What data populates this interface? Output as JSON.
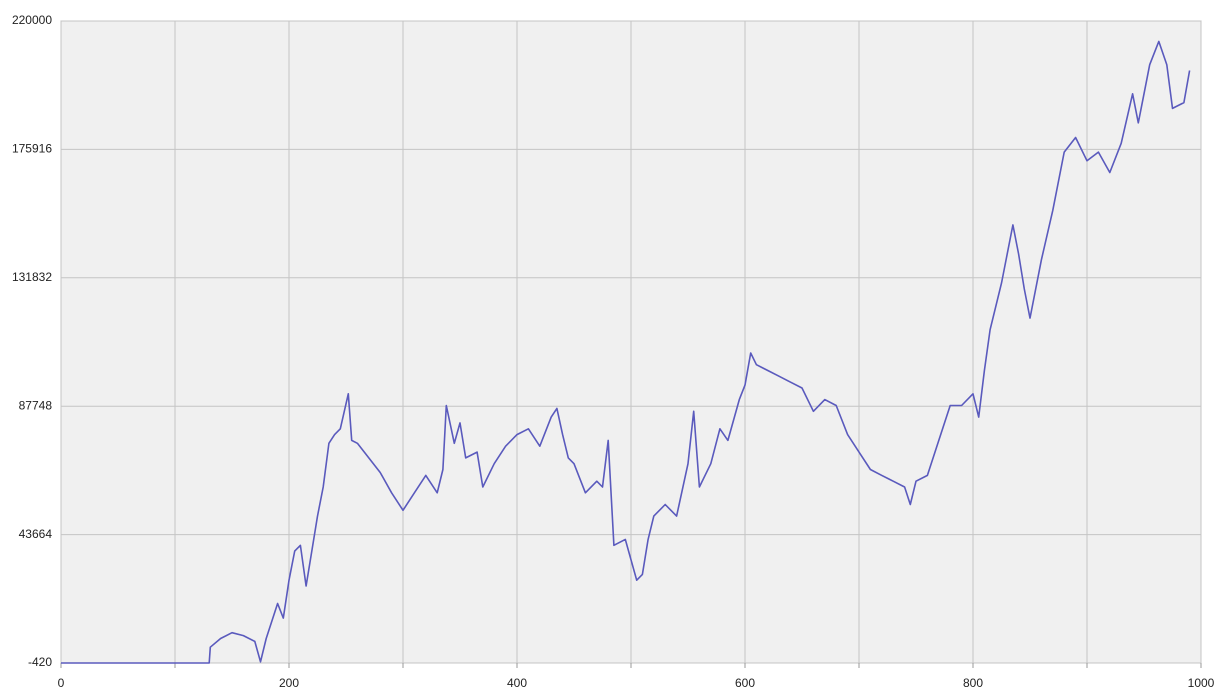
{
  "chart_data": {
    "type": "line",
    "color": "#5a5abd",
    "grid": true,
    "x": [
      0,
      120,
      130,
      131,
      140,
      150,
      160,
      170,
      175,
      180,
      190,
      195,
      200,
      205,
      210,
      215,
      220,
      225,
      230,
      235,
      240,
      245,
      252,
      255,
      260,
      270,
      280,
      290,
      300,
      310,
      320,
      330,
      335,
      338,
      345,
      350,
      355,
      365,
      370,
      380,
      390,
      400,
      410,
      420,
      430,
      435,
      440,
      445,
      450,
      460,
      470,
      475,
      480,
      485,
      495,
      505,
      510,
      515,
      520,
      530,
      540,
      550,
      555,
      560,
      570,
      578,
      585,
      595,
      600,
      605,
      610,
      620,
      630,
      640,
      650,
      660,
      670,
      680,
      690,
      700,
      710,
      720,
      730,
      740,
      745,
      750,
      760,
      770,
      780,
      790,
      800,
      805,
      810,
      815,
      825,
      835,
      840,
      845,
      850,
      860,
      870,
      880,
      890,
      900,
      910,
      920,
      930,
      940,
      945,
      955,
      963,
      970,
      975,
      985,
      990
    ],
    "values": [
      -420,
      -420,
      -420,
      5000,
      8000,
      10000,
      9000,
      7000,
      0,
      8000,
      20000,
      15000,
      28000,
      38000,
      40000,
      26000,
      38000,
      50000,
      60000,
      75000,
      78000,
      80000,
      92000,
      76000,
      75000,
      70000,
      65000,
      58000,
      52000,
      58000,
      64000,
      58000,
      66000,
      88000,
      75000,
      82000,
      70000,
      72000,
      60000,
      68000,
      74000,
      78000,
      80000,
      74000,
      84000,
      87000,
      78000,
      70000,
      68000,
      58000,
      62000,
      60000,
      76000,
      40000,
      42000,
      28000,
      30000,
      42000,
      50000,
      54000,
      50000,
      68000,
      86000,
      60000,
      68000,
      80000,
      76000,
      90000,
      95000,
      106000,
      102000,
      100000,
      98000,
      96000,
      94000,
      86000,
      90000,
      88000,
      78000,
      72000,
      66000,
      64000,
      62000,
      60000,
      54000,
      62000,
      64000,
      76000,
      88000,
      88000,
      92000,
      84000,
      100000,
      114000,
      130000,
      150000,
      140000,
      128000,
      118000,
      138000,
      155000,
      175000,
      180000,
      172000,
      175000,
      168000,
      178000,
      195000,
      185000,
      205000,
      213000,
      205000,
      190000,
      192000,
      203000
    ],
    "xlim": [
      0,
      1000
    ],
    "xticks": [
      0,
      200,
      400,
      600,
      800,
      1000
    ],
    "minor_xticks": [
      100,
      300,
      500,
      700,
      900
    ],
    "ylim": [
      -420,
      220000
    ],
    "yticks": [
      -420,
      43664,
      87748,
      131832,
      175916,
      220000
    ]
  }
}
